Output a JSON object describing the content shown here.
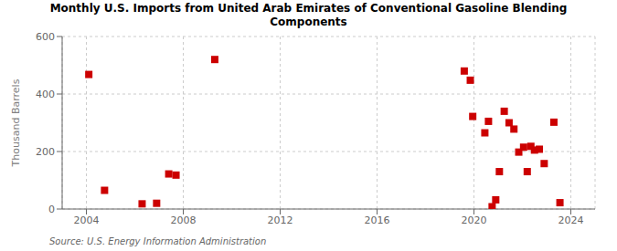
{
  "chart_data": {
    "type": "scatter",
    "title": "Monthly U.S. Imports from United Arab Emirates of Conventional Gasoline Blending\nComponents",
    "ylabel": "Thousand Barrels",
    "annotations": [
      "Source: U.S. Energy Information Administration"
    ],
    "x": [
      2004.1,
      2004.75,
      2006.3,
      2006.9,
      2007.4,
      2007.7,
      2009.3,
      2019.6,
      2019.85,
      2019.95,
      2020.45,
      2020.6,
      2020.75,
      2020.9,
      2021.05,
      2021.25,
      2021.45,
      2021.65,
      2021.85,
      2022.05,
      2022.2,
      2022.35,
      2022.5,
      2022.7,
      2022.9,
      2023.3,
      2023.55
    ],
    "values": [
      468,
      65,
      18,
      20,
      122,
      118,
      520,
      480,
      448,
      322,
      265,
      305,
      8,
      32,
      130,
      340,
      300,
      278,
      198,
      215,
      130,
      218,
      205,
      208,
      158,
      302,
      22
    ],
    "color": "#cc0000",
    "marker": "square",
    "xlim": [
      2003.0,
      2025.0
    ],
    "xticks": [
      2004,
      2008,
      2012,
      2016,
      2020,
      2024
    ],
    "ylim": [
      0,
      600
    ],
    "yticks": [
      0,
      200,
      400,
      600
    ],
    "grid": true
  }
}
